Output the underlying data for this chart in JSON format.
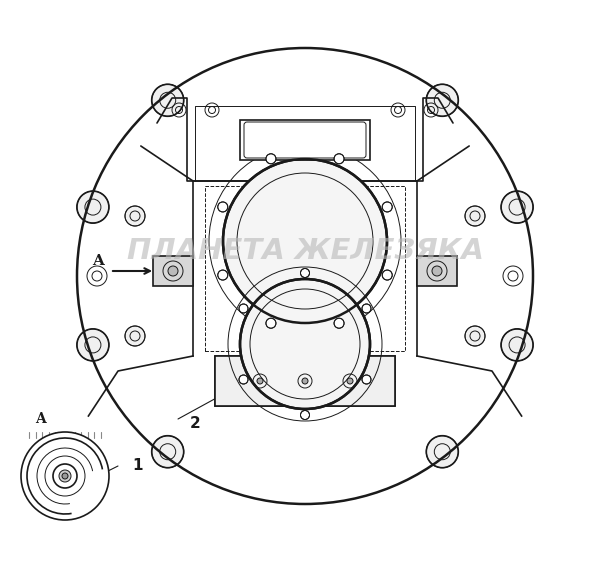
{
  "bg_color": "#ffffff",
  "line_color": "#1a1a1a",
  "watermark_text": "ПЛАНЕТА ЖЕЛЕЗЯКА",
  "watermark_color": "#b8b8b8",
  "figsize": [
    6.0,
    5.71
  ],
  "dpi": 100
}
